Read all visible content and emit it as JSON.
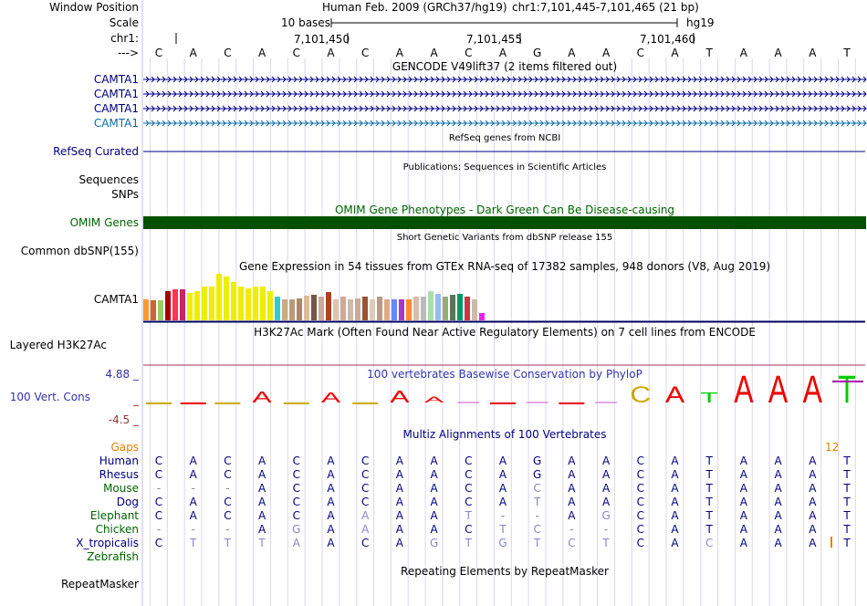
{
  "header": {
    "window_position_label": "Window Position",
    "scale_label": "Scale",
    "chrom_label": "chr1:",
    "arrow_label": "--->",
    "assembly": "Human Feb. 2009 (GRCh37/hg19)",
    "position": "chr1:7,101,445-7,101,465 (21 bp)",
    "scale_text": "10 bases",
    "db": "hg19",
    "ruler_ticks": [
      "7,101,450",
      "7,101,455",
      "7,101,460"
    ]
  },
  "sequence": [
    "C",
    "A",
    "C",
    "A",
    "C",
    "A",
    "C",
    "A",
    "A",
    "C",
    "A",
    "G",
    "A",
    "A",
    "C",
    "A",
    "T",
    "A",
    "A",
    "A",
    "T"
  ],
  "gencode": {
    "title": "GENCODE V49lift37 (2 items filtered out)",
    "items": [
      "CAMTA1",
      "CAMTA1",
      "CAMTA1",
      "CAMTA1"
    ]
  },
  "refseq": {
    "label": "RefSeq Curated",
    "title": "RefSeq genes from NCBI"
  },
  "publications": {
    "title": "Publications: Sequences in Scientific Articles"
  },
  "sequences_label": "Sequences",
  "snps_label": "SNPs",
  "omim": {
    "label": "OMIM Genes",
    "title": "OMIM Gene Phenotypes - Dark Green Can Be Disease-causing",
    "color": "#005000"
  },
  "dbsnp": {
    "title": "Short Genetic Variants from dbSNP release 155",
    "label": "Common dbSNP(155)"
  },
  "gtex": {
    "title": "Gene Expression in 54 tissues from GTEx RNA-seq of 17382 samples, 948 donors (V8, Aug 2019)",
    "label": "CAMTA1",
    "bars": [
      {
        "level": 0.46,
        "color": "#ff9933"
      },
      {
        "level": 0.44,
        "color": "#cc6633"
      },
      {
        "level": 0.44,
        "color": "#99cc66"
      },
      {
        "level": 0.62,
        "color": "#aa0000"
      },
      {
        "level": 0.66,
        "color": "#ff3355"
      },
      {
        "level": 0.66,
        "color": "#cc2266"
      },
      {
        "level": 0.58,
        "color": "#eeee00"
      },
      {
        "level": 0.63,
        "color": "#eeee00"
      },
      {
        "level": 0.72,
        "color": "#eeee00"
      },
      {
        "level": 0.72,
        "color": "#eeee00"
      },
      {
        "level": 1.0,
        "color": "#eeee00"
      },
      {
        "level": 0.94,
        "color": "#eeee00"
      },
      {
        "level": 0.82,
        "color": "#eeee00"
      },
      {
        "level": 0.72,
        "color": "#eeee00"
      },
      {
        "level": 0.68,
        "color": "#eeee00"
      },
      {
        "level": 0.72,
        "color": "#eeee00"
      },
      {
        "level": 0.72,
        "color": "#eeee00"
      },
      {
        "level": 0.62,
        "color": "#eeee00"
      },
      {
        "level": 0.5,
        "color": "#33cccc"
      },
      {
        "level": 0.46,
        "color": "#ccaa88"
      },
      {
        "level": 0.46,
        "color": "#bb9977"
      },
      {
        "level": 0.48,
        "color": "#aa8866"
      },
      {
        "level": 0.52,
        "color": "#ddbb99"
      },
      {
        "level": 0.54,
        "color": "#775544"
      },
      {
        "level": 0.5,
        "color": "#ccaa99"
      },
      {
        "level": 0.6,
        "color": "#aa4422"
      },
      {
        "level": 0.46,
        "color": "#ddc4aa"
      },
      {
        "level": 0.5,
        "color": "#ccaa99"
      },
      {
        "level": 0.46,
        "color": "#ccbbaa"
      },
      {
        "level": 0.48,
        "color": "#ccaa99"
      },
      {
        "level": 0.5,
        "color": "#995533"
      },
      {
        "level": 0.46,
        "color": "#ddccbb"
      },
      {
        "level": 0.5,
        "color": "#bb9988"
      },
      {
        "level": 0.46,
        "color": "#ddaa88"
      },
      {
        "level": 0.46,
        "color": "#6688ff"
      },
      {
        "level": 0.46,
        "color": "#aa33cc"
      },
      {
        "level": 0.46,
        "color": "#ff8833"
      },
      {
        "level": 0.5,
        "color": "#ddbbaa"
      },
      {
        "level": 0.5,
        "color": "#bbbbbb"
      },
      {
        "level": 0.62,
        "color": "#aaddaa"
      },
      {
        "level": 0.56,
        "color": "#99bbee"
      },
      {
        "level": 0.5,
        "color": "#99aa77"
      },
      {
        "level": 0.54,
        "color": "#557755"
      },
      {
        "level": 0.56,
        "color": "#009966"
      },
      {
        "level": 0.5,
        "color": "#cc3344"
      },
      {
        "level": 0.46,
        "color": "#ccbbaa"
      },
      {
        "level": 0.16,
        "color": "#ee22ee"
      }
    ]
  },
  "h3k27ac": {
    "title": "H3K27Ac Mark (Often Found Near Active Regulatory Elements) on 7 cell lines from ENCODE",
    "label": "Layered H3K27Ac"
  },
  "phylop": {
    "title": "100 vertebrates Basewise Conservation by PhyloP",
    "label": "100 Vert. Cons",
    "ymax": "4.88 _",
    "ymin": "-4.5 _",
    "ymid": "_",
    "letters": [
      {
        "base": "C",
        "value": -0.1
      },
      {
        "base": "A",
        "value": -0.25
      },
      {
        "base": "C",
        "value": -0.12
      },
      {
        "base": "A",
        "value": 1.1
      },
      {
        "base": "C",
        "value": -0.15
      },
      {
        "base": "A",
        "value": 1.0
      },
      {
        "base": "C",
        "value": -0.1
      },
      {
        "base": "A",
        "value": 1.2
      },
      {
        "base": "A",
        "value": 0.6
      },
      {
        "base": "C",
        "value": 0.0
      },
      {
        "base": "A",
        "value": -0.1
      },
      {
        "base": "G",
        "value": 0.0
      },
      {
        "base": "A",
        "value": -0.1
      },
      {
        "base": "A",
        "value": 0.0
      },
      {
        "base": "C",
        "value": 1.6
      },
      {
        "base": "A",
        "value": 1.6
      },
      {
        "base": "T",
        "value": 1.0
      },
      {
        "base": "A",
        "value": 2.7
      },
      {
        "base": "A",
        "value": 2.7
      },
      {
        "base": "A",
        "value": 2.7
      },
      {
        "base": "T",
        "value": 2.7
      }
    ]
  },
  "multiz": {
    "title": "Multiz Alignments of 100 Vertebrates",
    "gaps_label": "Gaps",
    "gap_count": "12",
    "species": [
      {
        "name": "Human",
        "color": "#000080",
        "bases": [
          "C",
          "A",
          "C",
          "A",
          "C",
          "A",
          "C",
          "A",
          "A",
          "C",
          "A",
          "G",
          "A",
          "A",
          "C",
          "A",
          "T",
          "A",
          "A",
          "A",
          "T"
        ]
      },
      {
        "name": "Rhesus",
        "color": "#000080",
        "bases": [
          "C",
          "A",
          "C",
          "A",
          "C",
          "A",
          "C",
          "A",
          "A",
          "C",
          "A",
          "G",
          "A",
          "A",
          "C",
          "A",
          "T",
          "A",
          "A",
          "A",
          "T"
        ]
      },
      {
        "name": "Mouse",
        "color": "#006400",
        "bases": [
          "-",
          "-",
          "-",
          "A",
          "C",
          "A",
          "C",
          "A",
          "A",
          "C",
          "A",
          "C",
          "A",
          "A",
          "C",
          "A",
          "T",
          "A",
          "A",
          "A",
          "T"
        ]
      },
      {
        "name": "Dog",
        "color": "#000080",
        "bases": [
          "C",
          "A",
          "C",
          "A",
          "C",
          "A",
          "C",
          "A",
          "A",
          "C",
          "A",
          "T",
          "A",
          "A",
          "C",
          "A",
          "T",
          "A",
          "A",
          "A",
          "T"
        ]
      },
      {
        "name": "Elephant",
        "color": "#006400",
        "bases": [
          "C",
          "A",
          "C",
          "A",
          "C",
          "A",
          "A",
          "A",
          "A",
          "T",
          "-",
          "-",
          "A",
          "G",
          "C",
          "A",
          "T",
          "A",
          "A",
          "A",
          "T"
        ]
      },
      {
        "name": "Chicken",
        "color": "#006400",
        "bases": [
          "-",
          "-",
          "-",
          "A",
          "G",
          "A",
          "A",
          "A",
          "A",
          "C",
          "T",
          "C",
          "-",
          "-",
          "C",
          "A",
          "T",
          "A",
          "A",
          "A",
          "T"
        ]
      },
      {
        "name": "X_tropicalis",
        "color": "#000080",
        "bases": [
          "C",
          "T",
          "T",
          "T",
          "A",
          "A",
          "C",
          "A",
          "G",
          "T",
          "G",
          "T",
          "C",
          "T",
          "C",
          "A",
          "C",
          "A",
          "A",
          "A",
          "T"
        ]
      },
      {
        "name": "Zebrafish",
        "color": "#006400",
        "bases": [
          "",
          "",
          "",
          "",
          "",
          "",
          "",
          "",
          "",
          "",
          "",
          "",
          "",
          "",
          "",
          "",
          "",
          "",
          "",
          "",
          ""
        ]
      }
    ]
  },
  "repeatmasker": {
    "title": "Repeating Elements by RepeatMasker",
    "label": "RepeatMasker"
  },
  "colors": {
    "navy": "#000080",
    "darkgreen": "#006400",
    "grid": "#d8d8ee",
    "gaps": "#e08000",
    "phylop_pos": "#3333aa",
    "phylop_neg": "#993333"
  }
}
